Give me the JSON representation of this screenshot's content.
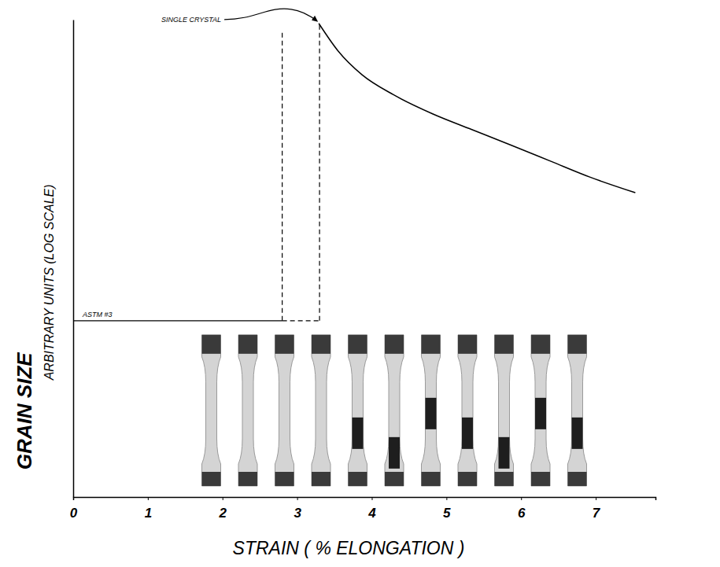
{
  "chart_data": {
    "type": "line",
    "y_label": "GRAIN SIZE",
    "y_sublabel": "ARBITRARY UNITS (LOG SCALE)",
    "x_label": "STRAIN ( % ELONGATION )",
    "log": "y",
    "tick_labels": "x",
    "xlim": [
      0,
      7.8
    ],
    "xticks": [
      0,
      1,
      2,
      3,
      4,
      5,
      6,
      7
    ],
    "ylim": [
      1,
      10000
    ],
    "series": [
      {
        "color": "#000000",
        "line_style": "solid",
        "x": [
          3.29,
          3.55,
          3.87,
          4.29,
          4.82,
          5.34,
          5.87,
          6.4,
          6.92,
          7.53
        ],
        "values": [
          9300,
          5450,
          3450,
          2350,
          1620,
          1200,
          885,
          650,
          480,
          355
        ]
      }
    ],
    "astm_level": {
      "label": "ASTM #3",
      "y": 30
    },
    "transition_x": [
      2.8,
      3.3
    ],
    "transition_top": [
      7950,
      9300
    ],
    "annotations": [
      {
        "text": "SINGLE CRYSTAL",
        "x": 3.3,
        "y": 9300
      }
    ]
  }
}
